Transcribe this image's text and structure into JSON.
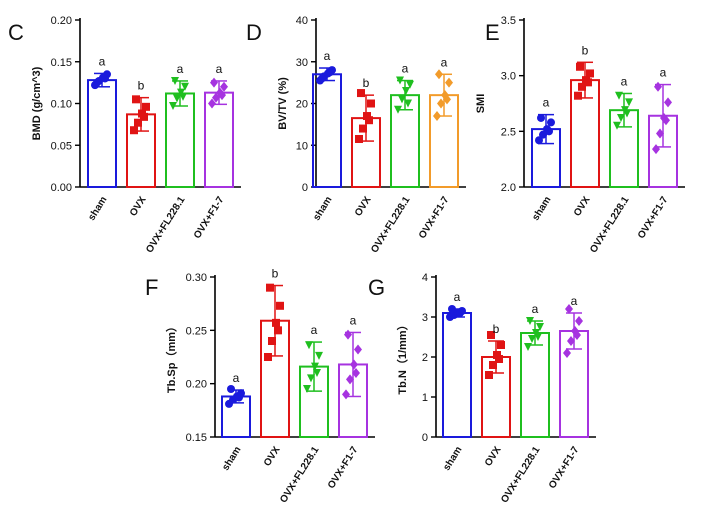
{
  "colors": {
    "sham": "#1a1adc",
    "OVX": "#e01414",
    "OVX+FL228.1": "#1fbf1f",
    "OVX+F1-7": "#a633e0",
    "orange": "#f29b2a"
  },
  "chart_data": [
    {
      "type": "bar",
      "panel": "C",
      "ylabel": "BMD (g/cm^3)",
      "categories": [
        "sham",
        "OVX",
        "OVX+FL228.1",
        "OVX+F1-7"
      ],
      "values": [
        0.128,
        0.087,
        0.112,
        0.113
      ],
      "sd": [
        0.008,
        0.02,
        0.015,
        0.014
      ],
      "letters": [
        "a",
        "b",
        "a",
        "a"
      ],
      "ylim": [
        0.0,
        0.2
      ],
      "ticks": [
        "0.00",
        "0.05",
        "0.10",
        "0.15",
        "0.20"
      ],
      "points": [
        [
          0.122,
          0.127,
          0.131,
          0.135,
          0.125,
          0.13
        ],
        [
          0.068,
          0.077,
          0.088,
          0.096,
          0.105,
          0.084
        ],
        [
          0.097,
          0.106,
          0.113,
          0.12,
          0.127,
          0.108
        ],
        [
          0.1,
          0.107,
          0.113,
          0.12,
          0.125,
          0.11
        ]
      ]
    },
    {
      "type": "bar",
      "panel": "D",
      "ylabel": "BV/TV (%)",
      "categories": [
        "sham",
        "OVX",
        "OVX+FL228.1",
        "OVX+F1-7"
      ],
      "values": [
        27.0,
        16.5,
        22.0,
        22.0
      ],
      "sd": [
        1.5,
        5.5,
        3.5,
        5.0
      ],
      "letters": [
        "a",
        "b",
        "a",
        "a"
      ],
      "ylim": [
        0,
        40
      ],
      "ticks": [
        "0",
        "10",
        "20",
        "30",
        "40"
      ],
      "points": [
        [
          25.5,
          26.5,
          27.2,
          28.0,
          26.0,
          27.5
        ],
        [
          11.5,
          14.0,
          17.0,
          20.0,
          22.5,
          16.0
        ],
        [
          18.5,
          21.0,
          23.0,
          24.5,
          25.5,
          20.0
        ],
        [
          17.0,
          20.0,
          22.0,
          25.0,
          27.0,
          21.0
        ]
      ]
    },
    {
      "type": "bar",
      "panel": "E",
      "ylabel": "SMI",
      "categories": [
        "sham",
        "OVX",
        "OVX+FL228.1",
        "OVX+F1-7"
      ],
      "values": [
        2.52,
        2.96,
        2.69,
        2.64
      ],
      "sd": [
        0.13,
        0.16,
        0.15,
        0.28
      ],
      "letters": [
        "a",
        "b",
        "a",
        "a"
      ],
      "ylim": [
        2.0,
        3.5
      ],
      "ticks": [
        "2.0",
        "2.5",
        "3.0",
        "3.5"
      ],
      "points": [
        [
          2.42,
          2.47,
          2.52,
          2.58,
          2.62,
          2.5
        ],
        [
          2.82,
          2.9,
          2.96,
          3.02,
          3.08,
          2.94
        ],
        [
          2.55,
          2.62,
          2.69,
          2.76,
          2.82,
          2.66
        ],
        [
          2.34,
          2.48,
          2.62,
          2.76,
          2.9,
          2.6
        ]
      ]
    },
    {
      "type": "bar",
      "panel": "F",
      "ylabel": "Tb.Sp（mm）",
      "categories": [
        "sham",
        "OVX",
        "OVX+FL228.1",
        "OVX+F1-7"
      ],
      "values": [
        0.188,
        0.259,
        0.216,
        0.218
      ],
      "sd": [
        0.006,
        0.033,
        0.023,
        0.03
      ],
      "letters": [
        "a",
        "b",
        "a",
        "a"
      ],
      "ylim": [
        0.15,
        0.3
      ],
      "ticks": [
        "0.15",
        "0.20",
        "0.25",
        "0.30"
      ],
      "points": [
        [
          0.181,
          0.185,
          0.188,
          0.191,
          0.195,
          0.187
        ],
        [
          0.225,
          0.24,
          0.257,
          0.273,
          0.29,
          0.25
        ],
        [
          0.195,
          0.205,
          0.216,
          0.226,
          0.236,
          0.21
        ],
        [
          0.19,
          0.204,
          0.218,
          0.232,
          0.246,
          0.21
        ]
      ]
    },
    {
      "type": "bar",
      "panel": "G",
      "ylabel": "Tb.N（1/mm）",
      "categories": [
        "sham",
        "OVX",
        "OVX+FL228.1",
        "OVX+F1-7"
      ],
      "values": [
        3.1,
        2.0,
        2.6,
        2.65
      ],
      "sd": [
        0.1,
        0.4,
        0.3,
        0.45
      ],
      "letters": [
        "a",
        "b",
        "a",
        "a"
      ],
      "ylim": [
        0,
        4
      ],
      "ticks": [
        "0",
        "1",
        "2",
        "3",
        "4"
      ],
      "points": [
        [
          3.0,
          3.05,
          3.1,
          3.15,
          3.2,
          3.1
        ],
        [
          1.55,
          1.8,
          2.05,
          2.3,
          2.55,
          1.95
        ],
        [
          2.25,
          2.45,
          2.6,
          2.75,
          2.9,
          2.5
        ],
        [
          2.1,
          2.4,
          2.65,
          2.9,
          3.2,
          2.55
        ]
      ]
    }
  ]
}
